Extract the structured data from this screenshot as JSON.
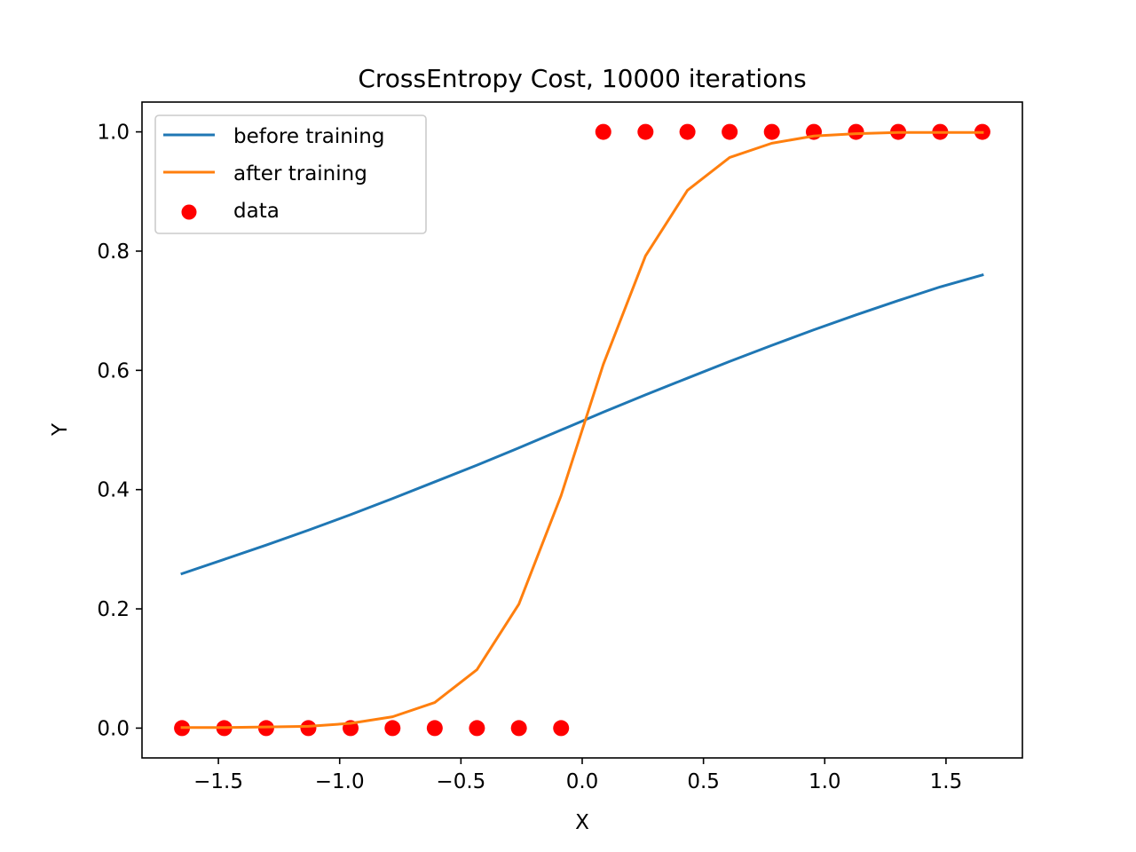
{
  "chart_data": {
    "type": "line",
    "title": "CrossEntropy Cost, 10000 iterations",
    "xlabel": "X",
    "ylabel": "Y",
    "xlim": [
      -1.815,
      1.815
    ],
    "ylim": [
      -0.05,
      1.05
    ],
    "xticks": [
      -1.5,
      -1.0,
      -0.5,
      0.0,
      0.5,
      1.0,
      1.5
    ],
    "xtick_labels": [
      "−1.5",
      "−1.0",
      "−0.5",
      "0.0",
      "0.5",
      "1.0",
      "1.5"
    ],
    "yticks": [
      0.0,
      0.2,
      0.4,
      0.6,
      0.8,
      1.0
    ],
    "ytick_labels": [
      "0.0",
      "0.2",
      "0.4",
      "0.6",
      "0.8",
      "1.0"
    ],
    "grid": false,
    "legend_position": "top-left",
    "x": [
      -1.65,
      -1.476,
      -1.303,
      -1.129,
      -0.955,
      -0.782,
      -0.608,
      -0.434,
      -0.261,
      -0.087,
      0.087,
      0.261,
      0.434,
      0.608,
      0.782,
      0.955,
      1.129,
      1.303,
      1.476,
      1.65
    ],
    "series": [
      {
        "name": "before training",
        "kind": "line",
        "color": "#1f77b4",
        "values": [
          0.259,
          0.283,
          0.307,
          0.332,
          0.358,
          0.385,
          0.413,
          0.441,
          0.47,
          0.5,
          0.53,
          0.559,
          0.587,
          0.615,
          0.642,
          0.668,
          0.693,
          0.717,
          0.74,
          0.76
        ]
      },
      {
        "name": "after training",
        "kind": "line",
        "color": "#ff7f0e",
        "values": [
          0.001,
          0.001,
          0.002,
          0.003,
          0.008,
          0.019,
          0.043,
          0.098,
          0.208,
          0.39,
          0.61,
          0.792,
          0.902,
          0.957,
          0.981,
          0.993,
          0.997,
          0.999,
          0.999,
          0.999
        ]
      },
      {
        "name": "data",
        "kind": "scatter",
        "color": "#ff0000",
        "values": [
          0,
          0,
          0,
          0,
          0,
          0,
          0,
          0,
          0,
          0,
          1,
          1,
          1,
          1,
          1,
          1,
          1,
          1,
          1,
          1
        ]
      }
    ]
  }
}
